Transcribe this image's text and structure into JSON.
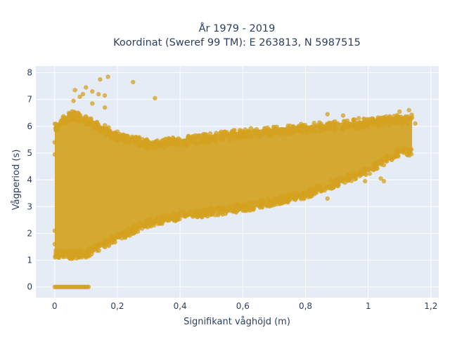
{
  "chart_data": {
    "type": "scatter",
    "title_line1": "År 1979 - 2019",
    "title_line2": "Koordinat (Sweref 99 TM): E 263813, N 5987515",
    "xlabel": "Signifikant våghöjd (m)",
    "ylabel": "Vågperiod (s)",
    "xlim": [
      -0.06,
      1.225
    ],
    "ylim": [
      -0.4,
      8.25
    ],
    "x_ticks": [
      0,
      0.2,
      0.4,
      0.6,
      0.8,
      1,
      1.2
    ],
    "x_tick_labels": [
      "0",
      "0,2",
      "0,4",
      "0,6",
      "0,8",
      "1",
      "1,2"
    ],
    "y_ticks": [
      0,
      1,
      2,
      3,
      4,
      5,
      6,
      7,
      8
    ],
    "y_tick_labels": [
      "0",
      "1",
      "2",
      "3",
      "4",
      "5",
      "6",
      "7",
      "8"
    ],
    "grid": true,
    "colors": {
      "marker": "#D4A220",
      "plot_background": "#E5ECF6",
      "grid": "#ffffff",
      "text": "#2a3f5f"
    },
    "main_cloud": {
      "x_range": [
        0,
        1.14
      ],
      "lower_edge": [
        [
          0,
          1.1
        ],
        [
          0.05,
          1.05
        ],
        [
          0.1,
          1.1
        ],
        [
          0.2,
          1.7
        ],
        [
          0.3,
          2.25
        ],
        [
          0.4,
          2.5
        ],
        [
          0.6,
          2.8
        ],
        [
          0.8,
          3.3
        ],
        [
          1.0,
          4.2
        ],
        [
          1.1,
          4.9
        ]
      ],
      "upper_edge": [
        [
          0,
          6.1
        ],
        [
          0.05,
          6.6
        ],
        [
          0.1,
          6.4
        ],
        [
          0.2,
          5.8
        ],
        [
          0.3,
          5.5
        ],
        [
          0.4,
          5.6
        ],
        [
          0.6,
          5.9
        ],
        [
          0.8,
          6.1
        ],
        [
          1.0,
          6.3
        ],
        [
          1.1,
          6.45
        ]
      ]
    },
    "zero_period_points": {
      "y": 0,
      "x_range": [
        0,
        0.11
      ]
    },
    "outliers": [
      {
        "x": 0.17,
        "y": 7.85
      },
      {
        "x": 0.145,
        "y": 7.75
      },
      {
        "x": 0.25,
        "y": 7.65
      },
      {
        "x": 0.1,
        "y": 7.45
      },
      {
        "x": 0.065,
        "y": 7.35
      },
      {
        "x": 0.12,
        "y": 7.3
      },
      {
        "x": 0.14,
        "y": 7.2
      },
      {
        "x": 0.16,
        "y": 7.15
      },
      {
        "x": 0.32,
        "y": 7.05
      },
      {
        "x": 0.08,
        "y": 7.1
      },
      {
        "x": 0.09,
        "y": 7.2
      },
      {
        "x": 0.06,
        "y": 6.95
      },
      {
        "x": 0.12,
        "y": 6.85
      },
      {
        "x": 0.16,
        "y": 6.7
      },
      {
        "x": 0.92,
        "y": 6.4
      },
      {
        "x": 0.87,
        "y": 6.45
      },
      {
        "x": 0.97,
        "y": 6.3
      },
      {
        "x": 1.13,
        "y": 6.6
      },
      {
        "x": 1.15,
        "y": 6.1
      },
      {
        "x": 1.1,
        "y": 6.55
      },
      {
        "x": 1.04,
        "y": 4.05
      },
      {
        "x": 1.05,
        "y": 3.95
      },
      {
        "x": 0.99,
        "y": 3.95
      },
      {
        "x": 0.87,
        "y": 3.3
      },
      {
        "x": 0.0,
        "y": 5.4
      },
      {
        "x": 0.0,
        "y": 4.95
      },
      {
        "x": 0.0,
        "y": 2.1
      },
      {
        "x": 0.0,
        "y": 1.6
      }
    ]
  }
}
